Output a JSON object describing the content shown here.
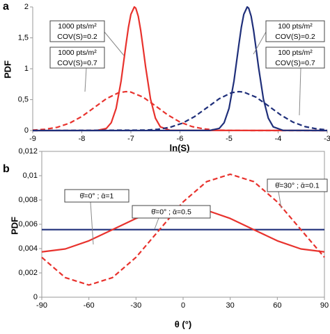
{
  "chart_data": [
    {
      "type": "line",
      "panel_label": "a",
      "xlabel": "ln(S)",
      "ylabel": "PDF",
      "xlim": [
        -9,
        -3
      ],
      "ylim": [
        0,
        2
      ],
      "xticks": [
        -9,
        -8,
        -7,
        -6,
        -5,
        -4,
        -3
      ],
      "yticks": [
        0,
        {
          "value": 0.5,
          "label": "0,5"
        },
        1,
        {
          "value": 1.5,
          "label": "1,5"
        },
        2
      ],
      "series": [
        {
          "color": "#e8322d",
          "dash": false,
          "x": [
            -9,
            -7.7,
            -7.5,
            -7.4,
            -7.3,
            -7.2,
            -7.1,
            -7.05,
            -7.0,
            -6.93,
            -6.9,
            -6.85,
            -6.8,
            -6.75,
            -6.7,
            -6.6,
            -6.5,
            -6.4,
            -6.2,
            -3
          ],
          "values": [
            0,
            0.001,
            0.034,
            0.127,
            0.36,
            0.8,
            1.39,
            1.67,
            1.88,
            2,
            1.98,
            1.85,
            1.62,
            1.33,
            1.03,
            0.51,
            0.2,
            0.06,
            0.003,
            0
          ]
        },
        {
          "color": "#e8322d",
          "dash": true,
          "x": [
            -9,
            -8.75,
            -8.5,
            -8.25,
            -8,
            -7.75,
            -7.5,
            -7.25,
            -7.1,
            -7,
            -6.75,
            -6.5,
            -6.25,
            -6,
            -5.75,
            -5.5,
            -5.25,
            -5,
            -4.5,
            -3
          ],
          "values": [
            0.007,
            0.02,
            0.053,
            0.119,
            0.227,
            0.37,
            0.515,
            0.612,
            0.63,
            0.622,
            0.54,
            0.4,
            0.254,
            0.137,
            0.063,
            0.025,
            0.008,
            0.002,
            0,
            0
          ]
        },
        {
          "color": "#1f2f7a",
          "dash": false,
          "x": [
            -9,
            -5.4,
            -5.2,
            -5.1,
            -5.0,
            -4.9,
            -4.8,
            -4.75,
            -4.7,
            -4.63,
            -4.6,
            -4.55,
            -4.5,
            -4.45,
            -4.4,
            -4.3,
            -4.2,
            -4.1,
            -3.9,
            -3
          ],
          "values": [
            0,
            0.001,
            0.034,
            0.127,
            0.36,
            0.8,
            1.39,
            1.67,
            1.88,
            2,
            1.98,
            1.85,
            1.62,
            1.33,
            1.03,
            0.51,
            0.2,
            0.06,
            0.003,
            0
          ]
        },
        {
          "color": "#1f2f7a",
          "dash": true,
          "x": [
            -9,
            -6.7,
            -6.45,
            -6.2,
            -5.95,
            -5.7,
            -5.45,
            -5.2,
            -4.95,
            -4.8,
            -4.7,
            -4.45,
            -4.2,
            -3.95,
            -3.7,
            -3.45,
            -3.2,
            -3
          ],
          "values": [
            0,
            0.007,
            0.02,
            0.053,
            0.119,
            0.227,
            0.37,
            0.515,
            0.612,
            0.63,
            0.622,
            0.54,
            0.4,
            0.254,
            0.137,
            0.063,
            0.025,
            0.011
          ]
        }
      ],
      "annotations": [
        {
          "lines": [
            "1000 pts/m²",
            "COV(S)=0.2"
          ]
        },
        {
          "lines": [
            "1000 pts/m²",
            "COV(S)=0.7"
          ]
        },
        {
          "lines": [
            "100 pts/m²",
            "COV(S)=0.2"
          ]
        },
        {
          "lines": [
            "100 pts/m²",
            "COV(S)=0.7"
          ]
        }
      ]
    },
    {
      "type": "line",
      "panel_label": "b",
      "xlabel": "θ (°)",
      "ylabel": "PDF",
      "xlim": [
        -90,
        90
      ],
      "ylim": [
        0,
        0.012
      ],
      "xticks": [
        -90,
        -60,
        -30,
        0,
        30,
        60,
        90
      ],
      "yticks": [
        0,
        {
          "value": 0.002,
          "label": "0,002"
        },
        {
          "value": 0.004,
          "label": "0,004"
        },
        {
          "value": 0.006,
          "label": "0,006"
        },
        {
          "value": 0.008,
          "label": "0,008"
        },
        {
          "value": 0.01,
          "label": "0,01"
        },
        {
          "value": 0.012,
          "label": "0,012"
        }
      ],
      "series": [
        {
          "color": "#1f2f7a",
          "dash": false,
          "x": [
            -90,
            90
          ],
          "values": [
            0.00556,
            0.00556
          ]
        },
        {
          "color": "#e8322d",
          "dash": false,
          "x": [
            -90,
            -75,
            -60,
            -45,
            -30,
            -15,
            0,
            15,
            30,
            45,
            60,
            75,
            90
          ],
          "values": [
            0.00373,
            0.00397,
            0.00464,
            0.00556,
            0.00648,
            0.00715,
            0.00739,
            0.00715,
            0.00648,
            0.00556,
            0.00464,
            0.00397,
            0.00373
          ]
        },
        {
          "color": "#e8322d",
          "dash": true,
          "x": [
            -90,
            -75,
            -60,
            -45,
            -30,
            -15,
            0,
            15,
            30,
            45,
            60,
            75,
            90
          ],
          "values": [
            0.00328,
            0.00161,
            0.001,
            0.00161,
            0.00328,
            0.00556,
            0.00784,
            0.00951,
            0.01012,
            0.00951,
            0.00784,
            0.00556,
            0.00328
          ]
        }
      ],
      "annotations": [
        {
          "lines": [
            "θ̄=0° ; ᾱ=1"
          ]
        },
        {
          "lines": [
            "θ̄=0° ; ᾱ=0.5"
          ]
        },
        {
          "lines": [
            "θ̄=30° ; ᾱ=0.1"
          ]
        }
      ]
    }
  ]
}
